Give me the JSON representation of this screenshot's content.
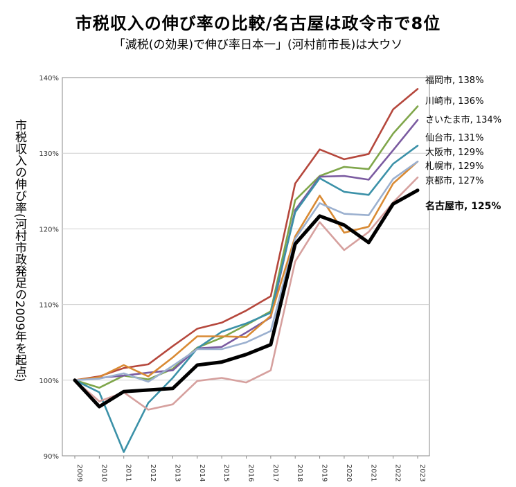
{
  "chart_data": {
    "type": "line",
    "title": "市税収入の伸び率の比較/名古屋は政令市で8位",
    "subtitle": "「減税(の効果)で伸び率日本一」(河村前市長)は大ウソ",
    "ylabel": "市税収入の伸び率(河村市政発足の2009年を起点)",
    "xlabel": "",
    "ylim": [
      90,
      140
    ],
    "y_ticks": [
      "90%",
      "100%",
      "110%",
      "120%",
      "130%",
      "140%"
    ],
    "x": [
      "2009",
      "2010",
      "2011",
      "2012",
      "2013",
      "2014",
      "2015",
      "2016",
      "2017",
      "2018",
      "2019",
      "2020",
      "2021",
      "2022",
      "2023"
    ],
    "grid": true,
    "legend": "end-of-line labels",
    "series": [
      {
        "name": "福岡市",
        "end_label": "福岡市, 138%",
        "color": "#b5473c",
        "values": [
          100,
          100.5,
          101.6,
          102.1,
          104.5,
          106.8,
          107.6,
          109.2,
          111.1,
          126.0,
          130.5,
          129.2,
          129.9,
          135.8,
          138.5
        ]
      },
      {
        "name": "川崎市",
        "end_label": "川崎市, 136%",
        "color": "#7fa64a",
        "values": [
          100,
          99.0,
          100.6,
          100.1,
          101.5,
          104.3,
          105.6,
          107.3,
          109.1,
          123.8,
          127.0,
          128.2,
          127.9,
          132.6,
          136.2
        ]
      },
      {
        "name": "さいたま市",
        "end_label": "さいたま市, 134%",
        "color": "#7a5aa0",
        "values": [
          100,
          100.3,
          100.6,
          101.0,
          101.3,
          104.2,
          104.4,
          106.3,
          108.3,
          122.5,
          126.9,
          127.0,
          126.5,
          130.4,
          134.4
        ]
      },
      {
        "name": "仙台市",
        "end_label": "仙台市, 131%",
        "color": "#3b91a8",
        "values": [
          100,
          98.4,
          90.5,
          97.0,
          100.3,
          104.2,
          106.4,
          107.5,
          108.9,
          122.2,
          126.7,
          124.9,
          124.5,
          128.6,
          131.0
        ]
      },
      {
        "name": "大阪市",
        "end_label": "大阪市, 129%",
        "color": "#d98a33",
        "values": [
          100,
          100.4,
          102.0,
          100.5,
          103.0,
          105.8,
          105.8,
          105.7,
          108.5,
          119.0,
          124.4,
          119.5,
          120.3,
          126.0,
          128.9
        ]
      },
      {
        "name": "札幌市",
        "end_label": "札幌市, 129%",
        "color": "#9bb0cf",
        "values": [
          100,
          100.2,
          100.9,
          99.8,
          101.9,
          104.1,
          104.1,
          105.0,
          106.5,
          118.7,
          123.4,
          122.0,
          121.8,
          126.6,
          128.9
        ]
      },
      {
        "name": "京都市",
        "end_label": "京都市, 127%",
        "color": "#d6a09e",
        "values": [
          100,
          97.2,
          98.4,
          96.1,
          96.8,
          99.9,
          100.3,
          99.7,
          101.3,
          115.7,
          120.9,
          117.2,
          119.6,
          123.5,
          126.8
        ]
      },
      {
        "name": "名古屋市",
        "end_label": "名古屋市, 125%",
        "color": "#000000",
        "bold": true,
        "values": [
          100,
          96.5,
          98.5,
          98.7,
          98.9,
          102.0,
          102.4,
          103.4,
          104.7,
          118.0,
          121.7,
          120.5,
          118.2,
          123.3,
          125.1
        ]
      }
    ]
  }
}
